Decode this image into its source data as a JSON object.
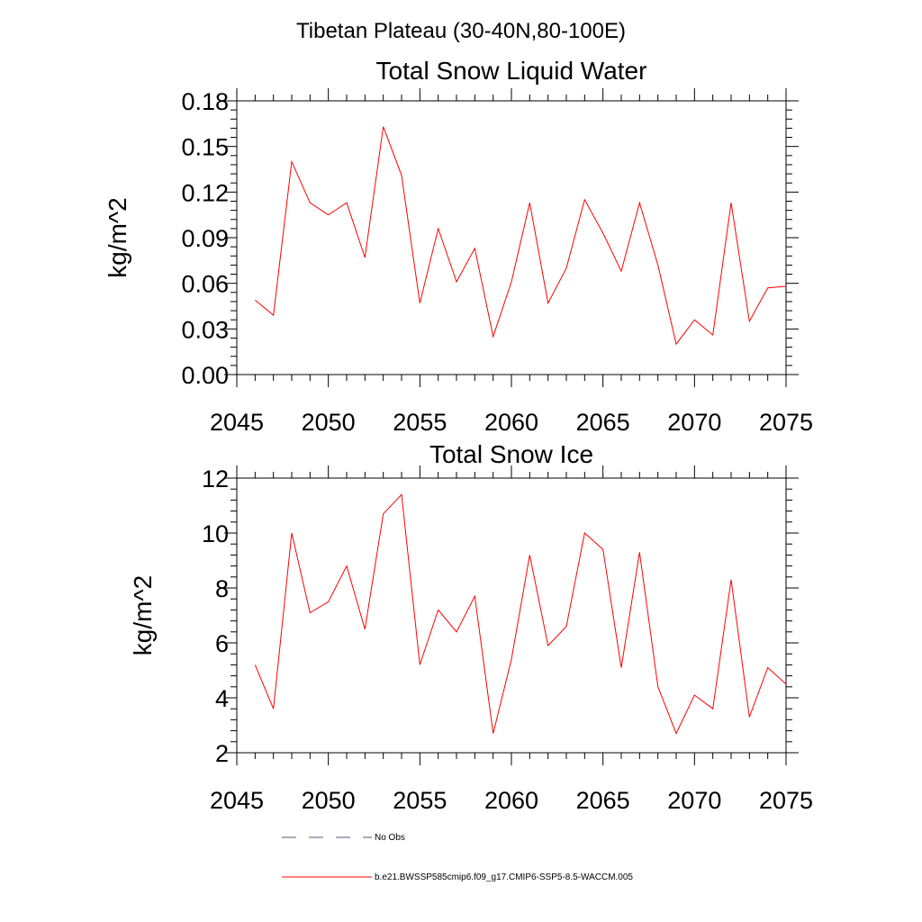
{
  "figure_title": "Tibetan Plateau (30-40N,80-100E)",
  "colors": {
    "series": "#ff0000",
    "no_obs": "#555577",
    "frame": "#000000"
  },
  "legend": {
    "items": [
      {
        "label": "No Obs",
        "style": "dashed"
      },
      {
        "label": "b.e21.BWSSP585cmip6.f09_g17.CMIP6-SSP5-8.5-WACCM.005",
        "style": "solid"
      }
    ]
  },
  "chart_data": [
    {
      "type": "line",
      "title": "Total Snow Liquid Water",
      "xlabel": "",
      "ylabel": "kg/m^2",
      "xlim": [
        2045,
        2075
      ],
      "ylim": [
        0,
        0.18
      ],
      "x_ticks": [
        2045,
        2050,
        2055,
        2060,
        2065,
        2070,
        2075
      ],
      "x_tick_labels": [
        "2045",
        "2050",
        "2055",
        "2060",
        "2065",
        "2070",
        "2075"
      ],
      "y_ticks": [
        0,
        0.03,
        0.06,
        0.09,
        0.12,
        0.15,
        0.18
      ],
      "y_tick_labels": [
        "0.00",
        "0.03",
        "0.06",
        "0.09",
        "0.12",
        "0.15",
        "0.18"
      ],
      "y_minor_step": 0.006,
      "x_minor_step": 1,
      "grid": false,
      "series": [
        {
          "name": "b.e21.BWSSP585cmip6.f09_g17.CMIP6-SSP5-8.5-WACCM.005",
          "x": [
            2046,
            2047,
            2048,
            2049,
            2050,
            2051,
            2052,
            2053,
            2054,
            2055,
            2056,
            2057,
            2058,
            2059,
            2060,
            2061,
            2062,
            2063,
            2064,
            2065,
            2066,
            2067,
            2068,
            2069,
            2070,
            2071,
            2072,
            2073,
            2074,
            2075
          ],
          "values": [
            0.049,
            0.039,
            0.14,
            0.113,
            0.105,
            0.113,
            0.077,
            0.163,
            0.131,
            0.047,
            0.096,
            0.061,
            0.083,
            0.025,
            0.061,
            0.113,
            0.047,
            0.07,
            0.115,
            0.093,
            0.068,
            0.113,
            0.072,
            0.02,
            0.036,
            0.026,
            0.113,
            0.035,
            0.057,
            0.058
          ]
        }
      ]
    },
    {
      "type": "line",
      "title": "Total Snow Ice",
      "xlabel": "",
      "ylabel": "kg/m^2",
      "xlim": [
        2045,
        2075
      ],
      "ylim": [
        2,
        12
      ],
      "x_ticks": [
        2045,
        2050,
        2055,
        2060,
        2065,
        2070,
        2075
      ],
      "x_tick_labels": [
        "2045",
        "2050",
        "2055",
        "2060",
        "2065",
        "2070",
        "2075"
      ],
      "y_ticks": [
        2,
        4,
        6,
        8,
        10,
        12
      ],
      "y_tick_labels": [
        "2",
        "4",
        "6",
        "8",
        "10",
        "12"
      ],
      "y_minor_step": 0.4,
      "x_minor_step": 1,
      "grid": false,
      "series": [
        {
          "name": "b.e21.BWSSP585cmip6.f09_g17.CMIP6-SSP5-8.5-WACCM.005",
          "x": [
            2046,
            2047,
            2048,
            2049,
            2050,
            2051,
            2052,
            2053,
            2054,
            2055,
            2056,
            2057,
            2058,
            2059,
            2060,
            2061,
            2062,
            2063,
            2064,
            2065,
            2066,
            2067,
            2068,
            2069,
            2070,
            2071,
            2072,
            2073,
            2074,
            2075
          ],
          "values": [
            5.2,
            3.6,
            10.0,
            7.1,
            7.5,
            8.8,
            6.5,
            10.7,
            11.4,
            5.2,
            7.2,
            6.4,
            7.7,
            2.7,
            5.4,
            9.2,
            5.9,
            6.6,
            10.0,
            9.4,
            5.1,
            9.3,
            4.4,
            2.7,
            4.1,
            3.6,
            8.3,
            3.3,
            5.1,
            4.5
          ]
        }
      ]
    }
  ]
}
